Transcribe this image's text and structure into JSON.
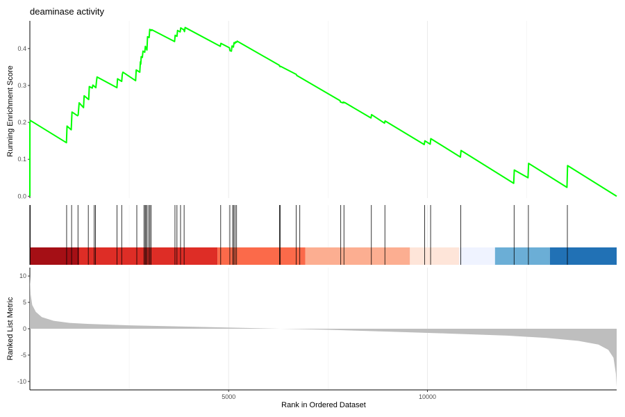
{
  "chart_data": {
    "type": "line",
    "title": "deaminase activity",
    "xlabel": "Rank in Ordered Dataset",
    "xlim": [
      0,
      14760
    ],
    "x_ticks": [
      5000,
      10000
    ],
    "grid": true,
    "colors": {
      "running_es": "#00ff00",
      "metric_fill": "#bebebe",
      "hit_line": "#000000",
      "grid": "#ebebeb"
    },
    "panels": [
      {
        "name": "running-enrichment",
        "ylabel": "Running Enrichment Score",
        "ylim": [
          -0.005,
          0.475
        ],
        "y_ticks": [
          0.0,
          0.1,
          0.2,
          0.3,
          0.4
        ],
        "y_tick_labels": [
          "0.0",
          "0.1",
          "0.2",
          "0.3",
          "0.4"
        ],
        "series": [
          {
            "x": [
              0,
              1,
              15,
              920,
              935,
              1040,
              1060,
              1200,
              1215,
              1230,
              1240,
              1350,
              1365,
              1480,
              1495,
              1570,
              1585,
              1660,
              1675,
              1680,
              1690,
              2190,
              2205,
              2310,
              2325,
              2330,
              2340,
              2660,
              2675,
              2765,
              2780,
              2790,
              2800,
              2830,
              2845,
              2890,
              2905,
              2945,
              2960,
              3000,
              3015,
              3050,
              3065,
              3640,
              3655,
              3700,
              3715,
              3780,
              3795,
              3850,
              3865,
              3890,
              3905,
              4790,
              4805,
              5020,
              5035,
              5070,
              5085,
              5120,
              5135,
              5160,
              5175,
              5200,
              5215,
              6270,
              6285,
              6295,
              6305,
              6700,
              6715,
              6780,
              6795,
              7800,
              7815,
              7870,
              7885,
              7900,
              7915,
              8580,
              8595,
              8920,
              8935,
              9920,
              9935,
              10070,
              10085,
              10830,
              10845,
              12170,
              12185,
              12530,
              12545,
              13510,
              13525,
              14760
            ],
            "values": [
              0.0,
              0.2,
              0.205,
              0.145,
              0.19,
              0.18,
              0.228,
              0.218,
              0.22,
              0.24,
              0.253,
              0.24,
              0.272,
              0.262,
              0.297,
              0.293,
              0.301,
              0.294,
              0.31,
              0.315,
              0.323,
              0.294,
              0.318,
              0.311,
              0.33,
              0.332,
              0.336,
              0.313,
              0.342,
              0.336,
              0.364,
              0.358,
              0.378,
              0.376,
              0.393,
              0.39,
              0.406,
              0.396,
              0.432,
              0.43,
              0.452,
              0.449,
              0.451,
              0.419,
              0.436,
              0.433,
              0.449,
              0.445,
              0.456,
              0.452,
              0.452,
              0.446,
              0.457,
              0.406,
              0.414,
              0.402,
              0.394,
              0.393,
              0.407,
              0.404,
              0.416,
              0.414,
              0.418,
              0.417,
              0.42,
              0.355,
              0.352,
              0.351,
              0.352,
              0.33,
              0.327,
              0.323,
              0.322,
              0.259,
              0.255,
              0.253,
              0.255,
              0.253,
              0.254,
              0.212,
              0.221,
              0.198,
              0.204,
              0.14,
              0.15,
              0.141,
              0.156,
              0.106,
              0.124,
              0.035,
              0.071,
              0.05,
              0.089,
              0.024,
              0.083,
              0.0
            ]
          }
        ]
      },
      {
        "name": "gene-hits",
        "hit_positions": [
          10,
          925,
          1050,
          1210,
          1470,
          1620,
          1650,
          2190,
          2310,
          2690,
          2870,
          2900,
          2920,
          2950,
          2990,
          3020,
          3050,
          3650,
          3700,
          3790,
          3880,
          4800,
          5030,
          5100,
          5130,
          5160,
          5200,
          6280,
          6300,
          6700,
          6790,
          7820,
          7900,
          8590,
          8930,
          9930,
          10080,
          10840,
          12180,
          12540,
          13520
        ],
        "color_bands": [
          {
            "x": [
              0,
              1240
            ],
            "color": "#a50f15"
          },
          {
            "x": [
              1240,
              4720
            ],
            "color": "#de2d26"
          },
          {
            "x": [
              4720,
              6930
            ],
            "color": "#fb6a4a"
          },
          {
            "x": [
              6930,
              9560
            ],
            "color": "#fcae91"
          },
          {
            "x": [
              9560,
              10800
            ],
            "color": "#fee5d9"
          },
          {
            "x": [
              10800,
              11700
            ],
            "color": "#eff3ff"
          },
          {
            "x": [
              11700,
              13080
            ],
            "color": "#6baed6"
          },
          {
            "x": [
              13080,
              14760
            ],
            "color": "#2171b5"
          }
        ]
      },
      {
        "name": "ranked-metric",
        "ylabel": "Ranked List Metric",
        "ylim": [
          -11.6,
          11.6
        ],
        "y_ticks": [
          10,
          5,
          0,
          -5,
          -10
        ],
        "y_tick_labels": [
          "10",
          "5",
          "0",
          "-5",
          "-10"
        ],
        "series": [
          {
            "x": [
              0,
              20,
              60,
              150,
              300,
              600,
              1000,
              1500,
              2500,
              4000,
              6000,
              7500,
              9000,
              10500,
              12000,
              13000,
              13800,
              14300,
              14550,
              14680,
              14740,
              14760
            ],
            "values": [
              10,
              6.5,
              4.5,
              3.2,
              2.2,
              1.5,
              1.1,
              0.9,
              0.65,
              0.4,
              0.05,
              -0.2,
              -0.55,
              -0.9,
              -1.3,
              -1.75,
              -2.3,
              -3.0,
              -4.0,
              -5.5,
              -8.5,
              -11
            ]
          }
        ]
      }
    ]
  }
}
